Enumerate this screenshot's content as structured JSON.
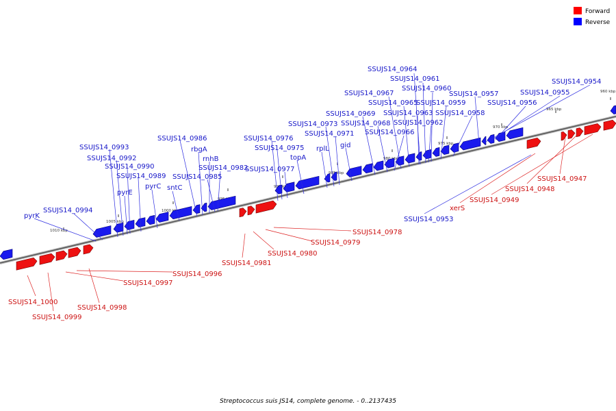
{
  "legend": [
    {
      "label": "Forward",
      "color": "#ff0000"
    },
    {
      "label": "Reverse",
      "color": "#0000ff"
    }
  ],
  "caption": "Streptococcus suis JS14, complete genome. - 0..2137435",
  "ticks": [
    {
      "label": "960 kbp",
      "kbp": 960
    },
    {
      "label": "965 kbp",
      "kbp": 965
    },
    {
      "label": "970 kbp",
      "kbp": 970
    },
    {
      "label": "975 kbp",
      "kbp": 975
    },
    {
      "label": "980 kbp",
      "kbp": 980
    },
    {
      "label": "985 kbp",
      "kbp": 985
    },
    {
      "label": "990 kbp",
      "kbp": 990
    },
    {
      "label": "995 kbp",
      "kbp": 995
    },
    {
      "label": "1000 kbp",
      "kbp": 1000
    },
    {
      "label": "1005 kbp",
      "kbp": 1005
    },
    {
      "label": "1010 kbp",
      "kbp": 1010
    }
  ],
  "reverse_genes": [
    "SSUJS14_0964",
    "SSUJS14_0961",
    "SSUJS14_0960",
    "SSUJS14_0957",
    "SSUJS14_0954",
    "SSUJS14_0967",
    "SSUJS14_0965",
    "SSUJS14_0959",
    "SSUJS14_0955",
    "SSUJS14_0956",
    "SSUJS14_0969",
    "SSUJS14_0963",
    "SSUJS14_0958",
    "SSUJS14_0973",
    "SSUJS14_0968",
    "SSUJS14_0962",
    "SSUJS14_0971",
    "SSUJS14_0966",
    "SSUJS14_0986",
    "SSUJS14_0976",
    "rplL",
    "gid",
    "SSUJS14_0993",
    "rbgA",
    "SSUJS14_0975",
    "topA",
    "SSUJS14_0992",
    "rnhB",
    "SSUJS14_0990",
    "SSUJS14_0982",
    "SSUJS14_0977",
    "SSUJS14_0989",
    "SSUJS14_0985",
    "sntC",
    "pyrE",
    "pyrC",
    "SSUJS14_0994",
    "pyrK",
    "SSUJS14_0953"
  ],
  "forward_genes": [
    "SSUJS14_0947",
    "SSUJS14_0948",
    "SSUJS14_0949",
    "xerS",
    "SSUJS14_0978",
    "SSUJS14_0979",
    "SSUJS14_0980",
    "SSUJS14_0981",
    "SSUJS14_0996",
    "SSUJS14_0997",
    "SSUJS14_1000",
    "SSUJS14_0998",
    "SSUJS14_0999"
  ]
}
